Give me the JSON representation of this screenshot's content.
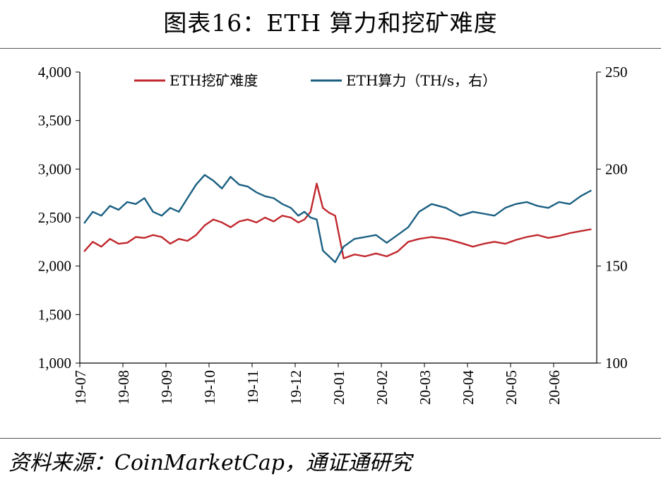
{
  "title": "图表16：ETH 算力和挖矿难度",
  "source": "资料来源：CoinMarketCap，通证通研究",
  "colors": {
    "difficulty": "#c0282d",
    "hashrate": "#1a5f82"
  },
  "chart_data": {
    "type": "line",
    "x_labels": [
      "19-07",
      "19-08",
      "19-09",
      "19-10",
      "19-11",
      "19-12",
      "20-01",
      "20-02",
      "20-03",
      "20-04",
      "20-05",
      "20-06"
    ],
    "y_left": {
      "ylim": [
        1000,
        4000
      ],
      "ticks": [
        "1,000",
        "1,500",
        "2,000",
        "2,500",
        "3,000",
        "3,500",
        "4,000"
      ]
    },
    "y_right": {
      "ylim": [
        100,
        250
      ],
      "ticks": [
        "100",
        "150",
        "200",
        "250"
      ]
    },
    "legend_placement": "top",
    "series": [
      {
        "name": "ETH挖矿难度",
        "axis": "left",
        "color": "#c0282d",
        "points": [
          [
            "19-07",
            2150
          ],
          [
            "19-07",
            2250
          ],
          [
            "19-07",
            2200
          ],
          [
            "19-07",
            2280
          ],
          [
            "19-07",
            2230
          ],
          [
            "19-08",
            2240
          ],
          [
            "19-08",
            2300
          ],
          [
            "19-08",
            2290
          ],
          [
            "19-08",
            2320
          ],
          [
            "19-08",
            2300
          ],
          [
            "19-09",
            2230
          ],
          [
            "19-09",
            2280
          ],
          [
            "19-09",
            2260
          ],
          [
            "19-09",
            2320
          ],
          [
            "19-09",
            2420
          ],
          [
            "19-10",
            2480
          ],
          [
            "19-10",
            2450
          ],
          [
            "19-10",
            2400
          ],
          [
            "19-10",
            2460
          ],
          [
            "19-10",
            2480
          ],
          [
            "19-11",
            2450
          ],
          [
            "19-11",
            2500
          ],
          [
            "19-11",
            2460
          ],
          [
            "19-11",
            2520
          ],
          [
            "19-11",
            2500
          ],
          [
            "19-12",
            2450
          ],
          [
            "19-12",
            2480
          ],
          [
            "19-12",
            2560
          ],
          [
            "19-12",
            2850
          ],
          [
            "19-12",
            2600
          ],
          [
            "19-12",
            2550
          ],
          [
            "19-12",
            2520
          ],
          [
            "20-01",
            2080
          ],
          [
            "20-01",
            2120
          ],
          [
            "20-01",
            2100
          ],
          [
            "20-01",
            2130
          ],
          [
            "20-02",
            2100
          ],
          [
            "20-02",
            2150
          ],
          [
            "20-02",
            2250
          ],
          [
            "20-02",
            2280
          ],
          [
            "20-03",
            2300
          ],
          [
            "20-03",
            2280
          ],
          [
            "20-03",
            2240
          ],
          [
            "20-04",
            2200
          ],
          [
            "20-04",
            2230
          ],
          [
            "20-04",
            2250
          ],
          [
            "20-04",
            2230
          ],
          [
            "20-05",
            2270
          ],
          [
            "20-05",
            2300
          ],
          [
            "20-05",
            2320
          ],
          [
            "20-05",
            2290
          ],
          [
            "20-06",
            2310
          ],
          [
            "20-06",
            2340
          ],
          [
            "20-06",
            2360
          ],
          [
            "20-06",
            2380
          ]
        ]
      },
      {
        "name": "ETH算力（TH/s，右）",
        "axis": "right",
        "color": "#1a5f82",
        "points": [
          [
            "19-07",
            172
          ],
          [
            "19-07",
            178
          ],
          [
            "19-07",
            176
          ],
          [
            "19-07",
            181
          ],
          [
            "19-07",
            179
          ],
          [
            "19-08",
            183
          ],
          [
            "19-08",
            182
          ],
          [
            "19-08",
            185
          ],
          [
            "19-08",
            178
          ],
          [
            "19-08",
            176
          ],
          [
            "19-09",
            180
          ],
          [
            "19-09",
            178
          ],
          [
            "19-09",
            185
          ],
          [
            "19-09",
            192
          ],
          [
            "19-09",
            197
          ],
          [
            "19-10",
            194
          ],
          [
            "19-10",
            190
          ],
          [
            "19-10",
            196
          ],
          [
            "19-10",
            192
          ],
          [
            "19-10",
            191
          ],
          [
            "19-11",
            188
          ],
          [
            "19-11",
            186
          ],
          [
            "19-11",
            185
          ],
          [
            "19-11",
            182
          ],
          [
            "19-11",
            180
          ],
          [
            "19-12",
            176
          ],
          [
            "19-12",
            178
          ],
          [
            "19-12",
            175
          ],
          [
            "19-12",
            174
          ],
          [
            "19-12",
            158
          ],
          [
            "19-12",
            155
          ],
          [
            "19-12",
            152
          ],
          [
            "20-01",
            160
          ],
          [
            "20-01",
            164
          ],
          [
            "20-01",
            165
          ],
          [
            "20-01",
            166
          ],
          [
            "20-02",
            162
          ],
          [
            "20-02",
            166
          ],
          [
            "20-02",
            170
          ],
          [
            "20-02",
            178
          ],
          [
            "20-03",
            182
          ],
          [
            "20-03",
            180
          ],
          [
            "20-03",
            176
          ],
          [
            "20-04",
            178
          ],
          [
            "20-04",
            177
          ],
          [
            "20-04",
            176
          ],
          [
            "20-04",
            180
          ],
          [
            "20-05",
            182
          ],
          [
            "20-05",
            183
          ],
          [
            "20-05",
            181
          ],
          [
            "20-05",
            180
          ],
          [
            "20-06",
            183
          ],
          [
            "20-06",
            182
          ],
          [
            "20-06",
            186
          ],
          [
            "20-06",
            189
          ]
        ]
      }
    ]
  }
}
